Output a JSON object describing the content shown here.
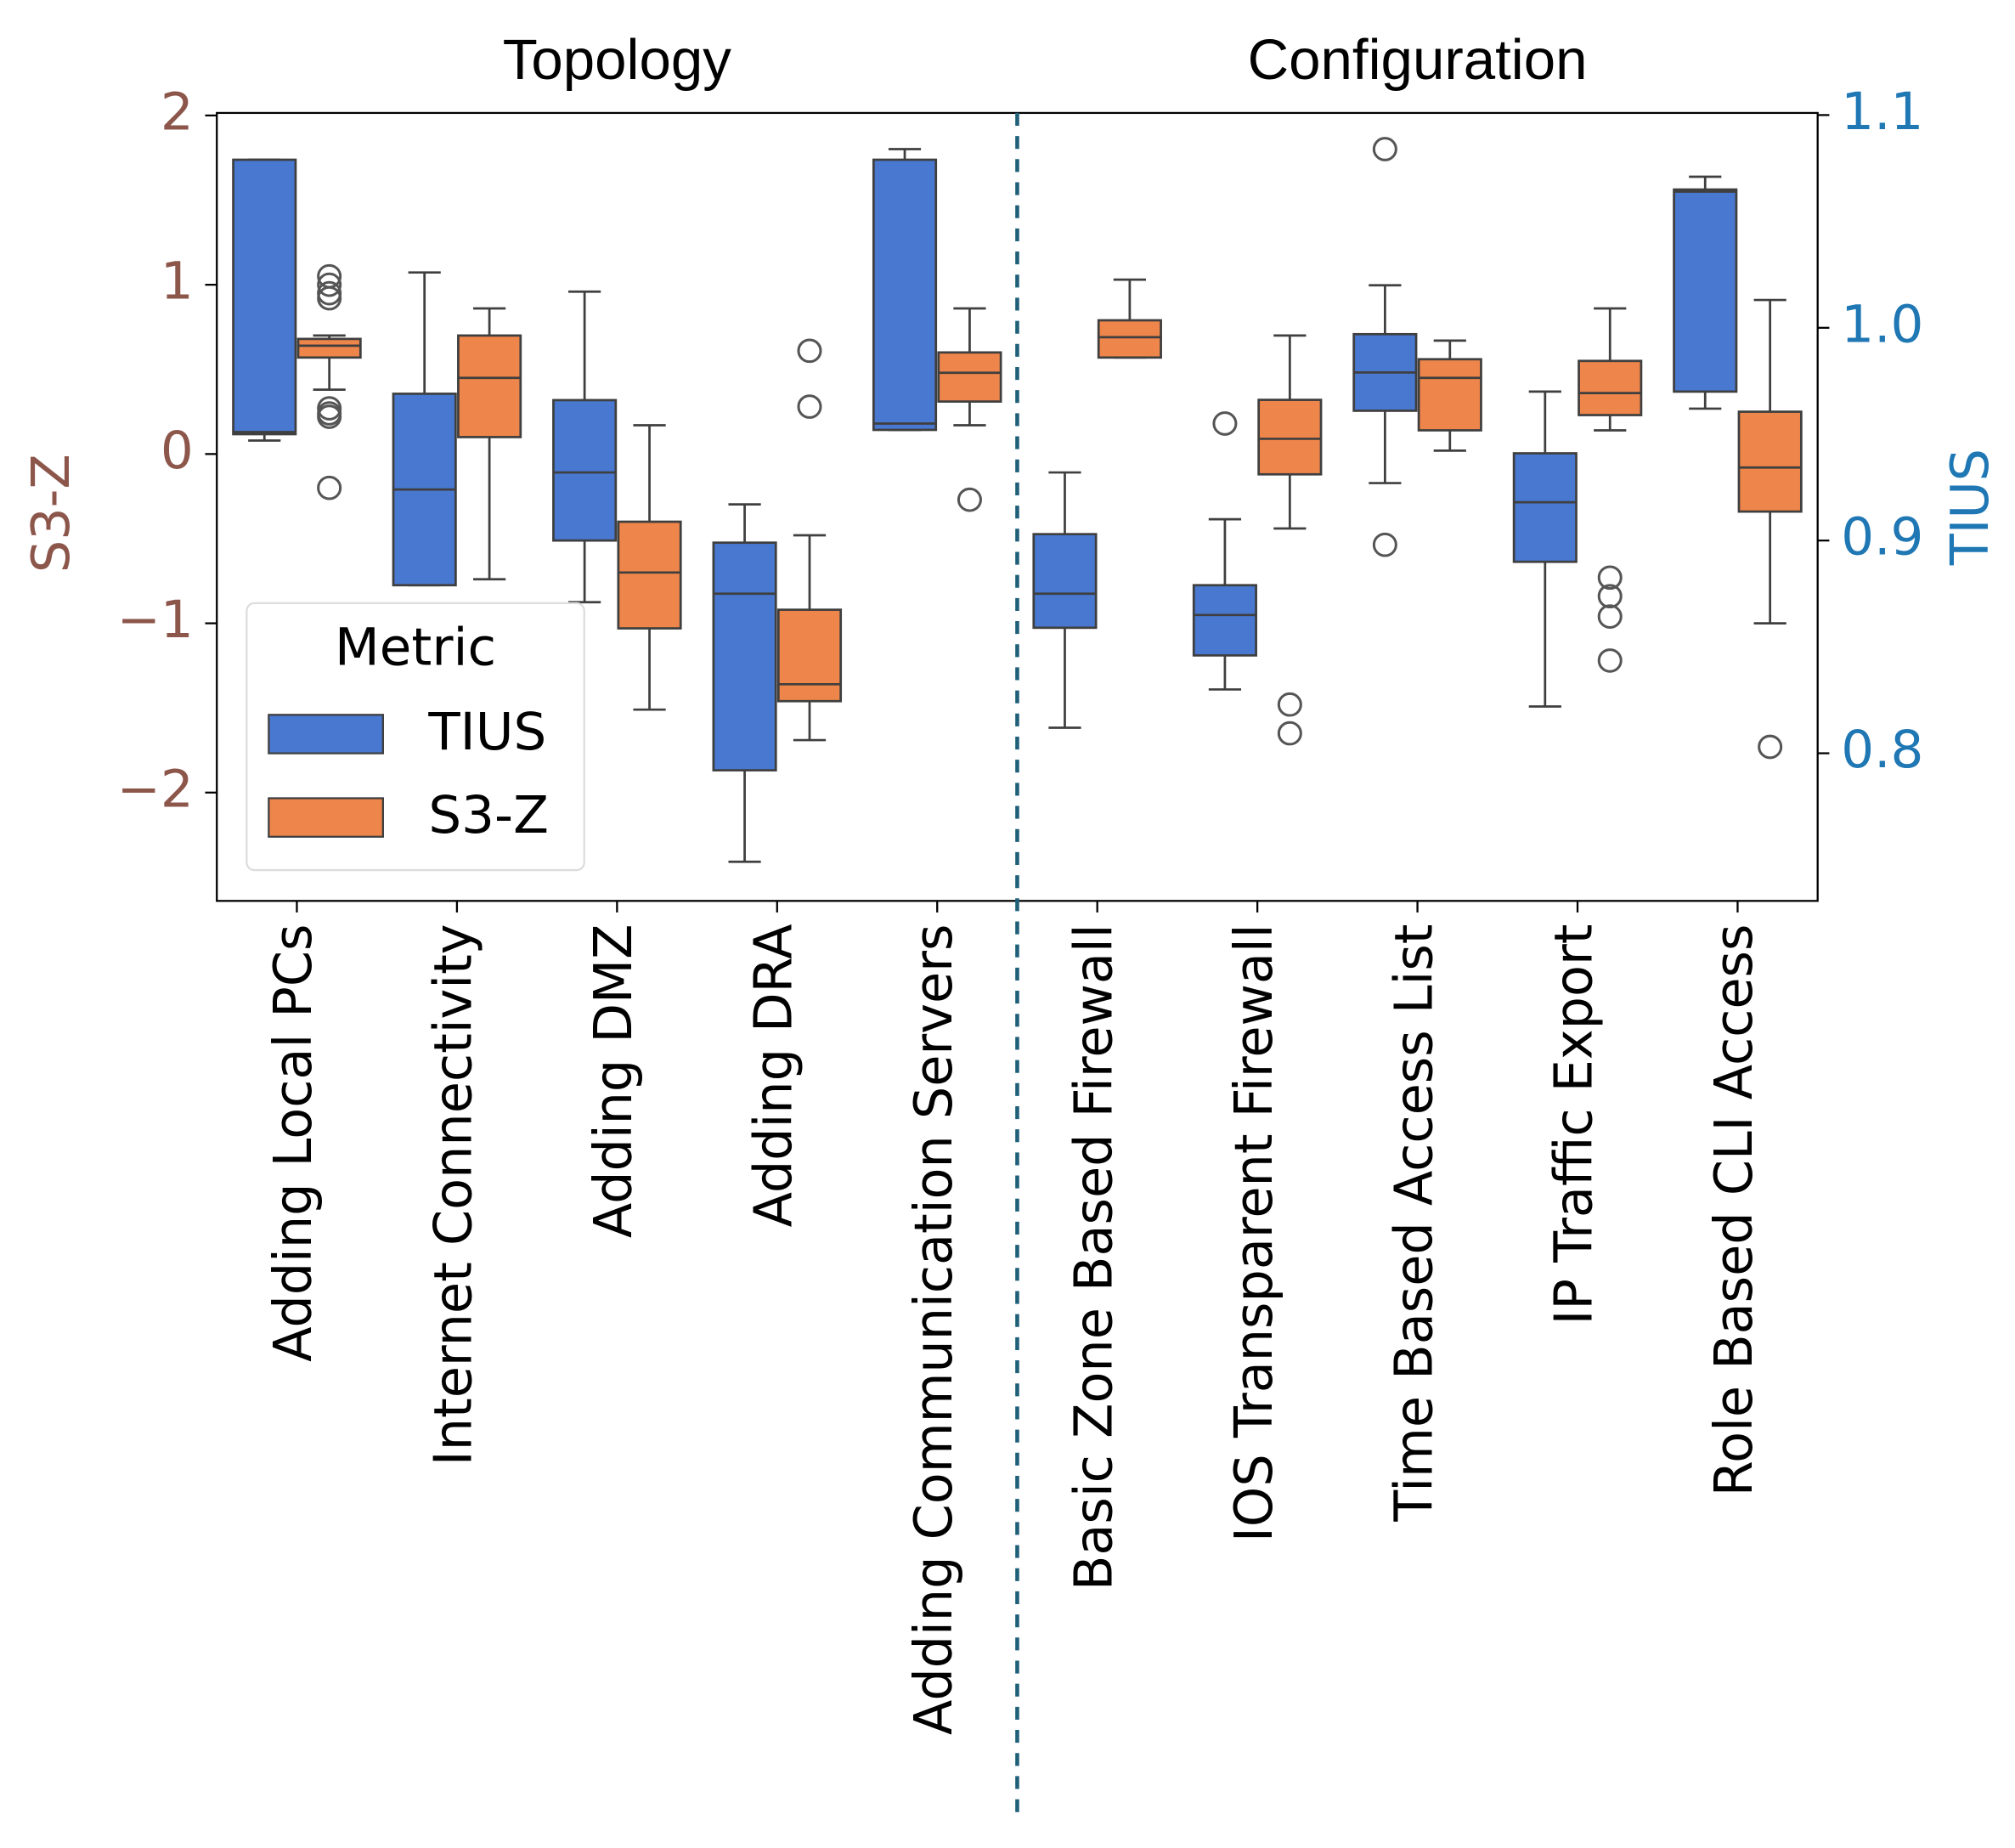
{
  "chart_data": {
    "type": "box",
    "groups": [
      {
        "label": "Topology",
        "categories": [
          "Adding Local PCs",
          "Internet Connectivity",
          "Adding DMZ",
          "Adding DRA",
          "Adding Communication Servers"
        ]
      },
      {
        "label": "Configuration",
        "categories": [
          "Basic Zone Based Firewall",
          "IOS Transparent Firewall",
          "Time Based Access List",
          "IP Traffic Export",
          "Role Based CLI Access"
        ]
      }
    ],
    "ylabel": "S3-Z",
    "y2label": "TIUS",
    "ycolor": "#8c564b",
    "y2color": "#1f77b4",
    "ylim": [
      -2.64,
      2.015
    ],
    "yticks": [
      2,
      1,
      0,
      {
        "value": -1,
        "label": "−1"
      },
      {
        "value": -2,
        "label": "−2"
      }
    ],
    "y2lim": [
      0.7306,
      1.101
    ],
    "y2ticks": [
      1.1,
      {
        "value": 1.0,
        "label": "1.0"
      },
      0.9,
      0.8
    ],
    "legend": "lower left",
    "legend_title": "Metric",
    "series": [
      {
        "name": "TIUS",
        "color": "#4878d0",
        "axis": "y2",
        "whisker_low": [
          0.947,
          0.879,
          0.871,
          0.749,
          0.952,
          0.812,
          0.83,
          0.927,
          0.822,
          0.962
        ],
        "q1": [
          0.95,
          0.879,
          0.9,
          0.792,
          0.952,
          0.859,
          0.846,
          0.961,
          0.89,
          0.97
        ],
        "median": [
          0.951,
          0.924,
          0.932,
          0.875,
          0.955,
          0.875,
          0.865,
          0.979,
          0.918,
          1.064
        ],
        "q3": [
          1.079,
          0.969,
          0.966,
          0.899,
          1.079,
          0.903,
          0.879,
          0.997,
          0.941,
          1.065
        ],
        "whisker_high": [
          1.079,
          1.026,
          1.017,
          0.917,
          1.084,
          0.932,
          0.91,
          1.02,
          0.97,
          1.071
        ],
        "outliers": [
          [],
          [],
          [],
          [],
          [],
          [],
          [
            0.955
          ],
          [
            1.084,
            0.898
          ],
          [],
          []
        ]
      },
      {
        "name": "S3-Z",
        "color": "#ee854a",
        "axis": "y",
        "whisker_low": [
          0.38,
          -0.74,
          -1.51,
          -1.69,
          0.17,
          0.57,
          -0.44,
          0.02,
          0.14,
          -1.0
        ],
        "q1": [
          0.57,
          0.1,
          -1.03,
          -1.46,
          0.31,
          0.57,
          -0.12,
          0.14,
          0.23,
          -0.34
        ],
        "median": [
          0.64,
          0.45,
          -0.7,
          -1.36,
          0.48,
          0.69,
          0.09,
          0.45,
          0.36,
          -0.08
        ],
        "q3": [
          0.68,
          0.7,
          -0.4,
          -0.92,
          0.6,
          0.79,
          0.32,
          0.56,
          0.55,
          0.25
        ],
        "whisker_high": [
          0.7,
          0.86,
          0.17,
          -0.48,
          0.86,
          1.03,
          0.7,
          0.67,
          0.86,
          0.91
        ],
        "outliers": [
          [
            1.05,
            1.0,
            0.95,
            0.92,
            0.27,
            0.24,
            0.22,
            -0.2
          ],
          [],
          [],
          [
            0.61,
            0.28
          ],
          [
            -0.27
          ],
          [],
          [
            -1.48,
            -1.65
          ],
          [],
          [
            -0.73,
            -0.84,
            -0.96,
            -1.22
          ],
          [
            -1.73
          ]
        ]
      }
    ]
  }
}
